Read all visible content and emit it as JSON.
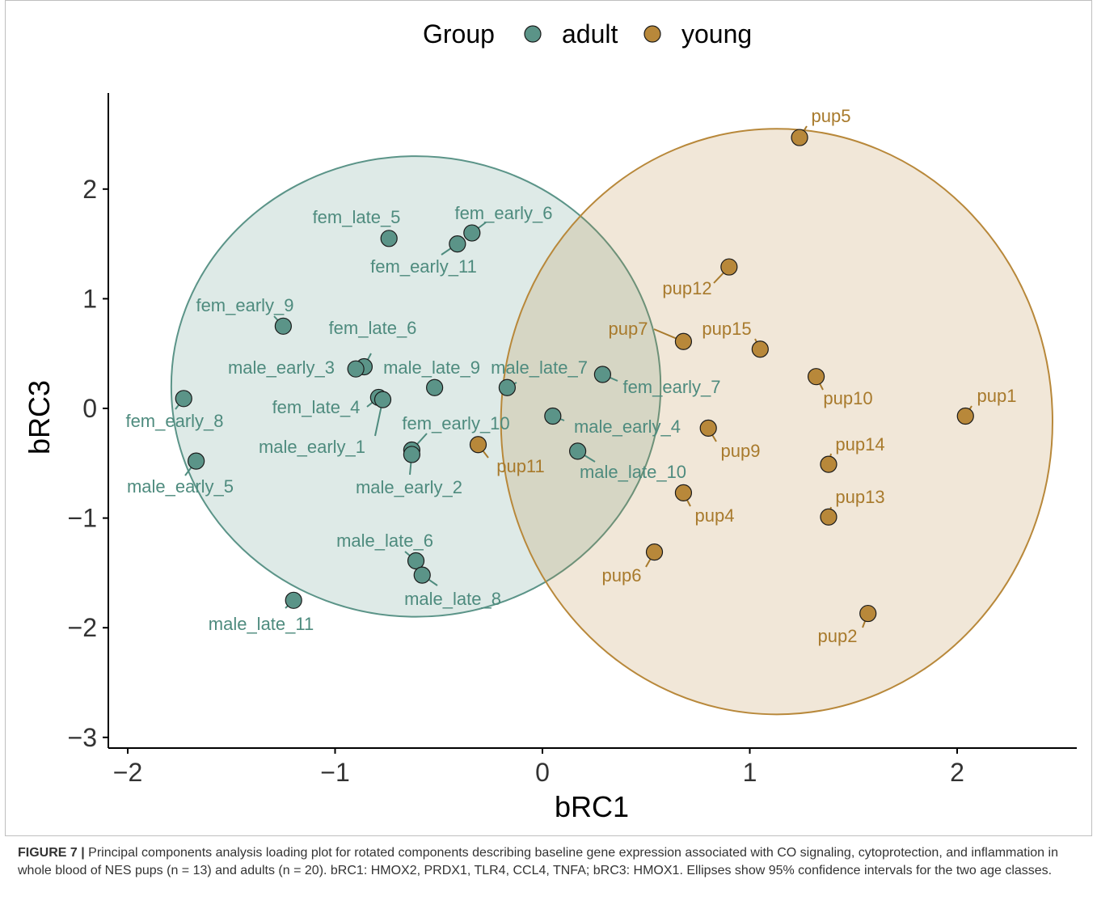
{
  "chart_data": {
    "type": "scatter",
    "title": "",
    "xlabel": "bRC1",
    "ylabel": "bRC3",
    "xlim": [
      -2.1,
      2.6
    ],
    "ylim": [
      -3.05,
      2.9
    ],
    "xticks": [
      -2,
      -1,
      0,
      1,
      2
    ],
    "yticks": [
      -3,
      -2,
      -1,
      0,
      1,
      2
    ],
    "xtick_labels": [
      "−2",
      "−1",
      "0",
      "1",
      "2"
    ],
    "ytick_labels": [
      "−3",
      "−2",
      "−1",
      "0",
      "1",
      "2"
    ],
    "legend": {
      "title": "Group",
      "placement": "top",
      "entries": [
        {
          "name": "adult",
          "color": "#5b9488"
        },
        {
          "name": "young",
          "color": "#b8883a"
        }
      ]
    },
    "colors": {
      "adult_fill": "#5b9488",
      "adult_text": "#4e8b7e",
      "young_fill": "#b8883a",
      "young_text": "#a87a2c"
    },
    "ellipses": [
      {
        "group": "adult",
        "center": [
          -0.61,
          0.2
        ],
        "radius_x": 1.18,
        "radius_y": 2.1
      },
      {
        "group": "young",
        "center": [
          1.13,
          -0.12
        ],
        "radius_x": 1.33,
        "radius_y": 2.67
      }
    ],
    "series": [
      {
        "name": "adult",
        "points": [
          {
            "label": "fem_late_5",
            "x": -0.74,
            "y": 1.55
          },
          {
            "label": "fem_early_6",
            "x": -0.34,
            "y": 1.6
          },
          {
            "label": "fem_early_11",
            "x": -0.41,
            "y": 1.5
          },
          {
            "label": "fem_early_9",
            "x": -1.25,
            "y": 0.75
          },
          {
            "label": "fem_late_6",
            "x": -0.86,
            "y": 0.38
          },
          {
            "label": "male_early_3",
            "x": -0.9,
            "y": 0.36
          },
          {
            "label": "male_late_9",
            "x": -0.52,
            "y": 0.19
          },
          {
            "label": "male_late_7",
            "x": -0.17,
            "y": 0.19
          },
          {
            "label": "fem_early_7",
            "x": 0.29,
            "y": 0.31
          },
          {
            "label": "fem_early_8",
            "x": -1.73,
            "y": 0.09
          },
          {
            "label": "fem_late_4",
            "x": -0.79,
            "y": 0.1
          },
          {
            "label": "male_early_1",
            "x": -0.77,
            "y": 0.08
          },
          {
            "label": "fem_early_10",
            "x": -0.63,
            "y": -0.38
          },
          {
            "label": "male_early_2",
            "x": -0.63,
            "y": -0.42
          },
          {
            "label": "male_early_4",
            "x": 0.05,
            "y": -0.07
          },
          {
            "label": "male_late_10",
            "x": 0.17,
            "y": -0.39
          },
          {
            "label": "male_early_5",
            "x": -1.67,
            "y": -0.48
          },
          {
            "label": "male_late_6",
            "x": -0.61,
            "y": -1.39
          },
          {
            "label": "male_late_8",
            "x": -0.58,
            "y": -1.52
          },
          {
            "label": "male_late_11",
            "x": -1.2,
            "y": -1.75
          }
        ]
      },
      {
        "name": "young",
        "points": [
          {
            "label": "pup5",
            "x": 1.24,
            "y": 2.47
          },
          {
            "label": "pup12",
            "x": 0.9,
            "y": 1.29
          },
          {
            "label": "pup7",
            "x": 0.68,
            "y": 0.61
          },
          {
            "label": "pup15",
            "x": 1.05,
            "y": 0.54
          },
          {
            "label": "pup10",
            "x": 1.32,
            "y": 0.29
          },
          {
            "label": "pup1",
            "x": 2.04,
            "y": -0.07
          },
          {
            "label": "pup9",
            "x": 0.8,
            "y": -0.18
          },
          {
            "label": "pup11",
            "x": -0.31,
            "y": -0.33
          },
          {
            "label": "pup14",
            "x": 1.38,
            "y": -0.51
          },
          {
            "label": "pup4",
            "x": 0.68,
            "y": -0.77
          },
          {
            "label": "pup13",
            "x": 1.38,
            "y": -0.99
          },
          {
            "label": "pup6",
            "x": 0.54,
            "y": -1.31
          },
          {
            "label": "pup2",
            "x": 1.57,
            "y": -1.87
          }
        ]
      }
    ]
  },
  "caption": {
    "lead": "FIGURE 7 |",
    "text": "Principal components analysis loading plot for rotated components describing baseline gene expression associated with CO signaling, cytoprotection, and inflammation in whole blood of NES pups (n = 13) and adults (n = 20). bRC1: HMOX2, PRDX1, TLR4, CCL4, TNFA; bRC3: HMOX1. Ellipses show 95% confidence intervals for the two age classes."
  }
}
